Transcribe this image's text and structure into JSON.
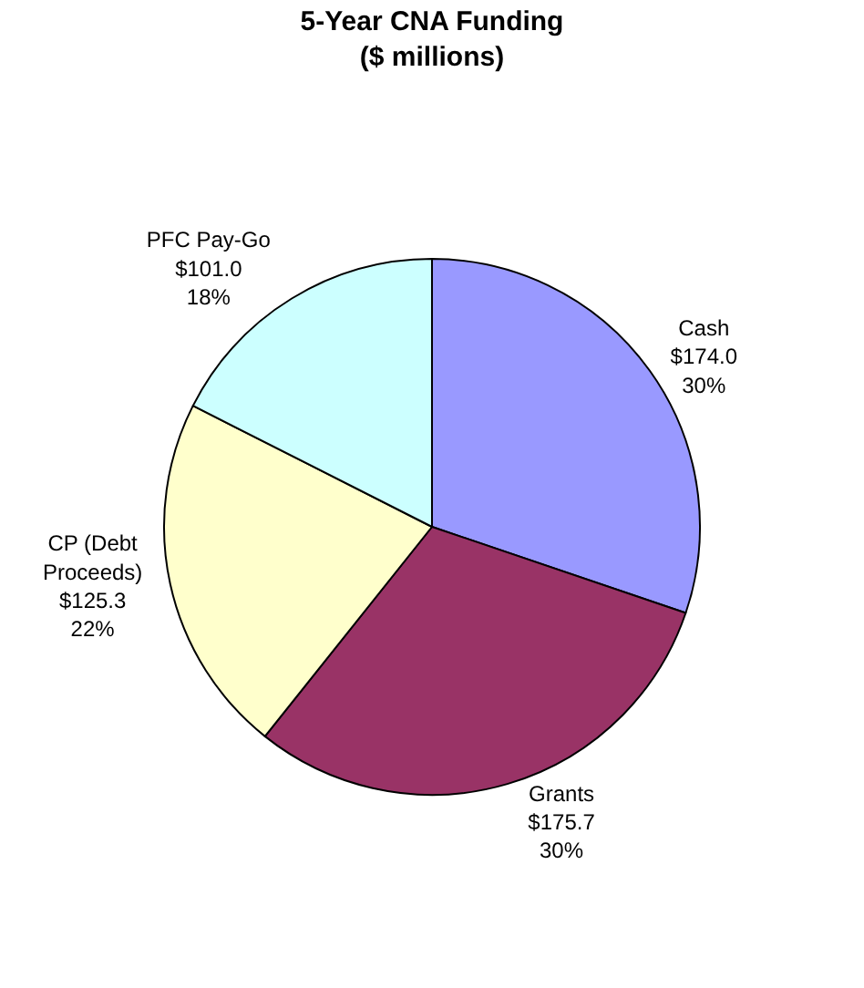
{
  "chart_data": {
    "type": "pie",
    "title": "5-Year CNA Funding\n($ millions)",
    "categories": [
      "Cash",
      "Grants",
      "CP (Debt\nProceeds)",
      "PFC Pay-Go"
    ],
    "values": [
      174.0,
      175.7,
      125.3,
      101.0
    ],
    "value_labels": [
      "$174.0\n30%",
      "$175.7\n30%",
      "$125.3\n22%",
      "$101.0\n18%"
    ],
    "colors": [
      "#9999ff",
      "#993366",
      "#ffffcc",
      "#ccffff"
    ],
    "legend": false
  }
}
